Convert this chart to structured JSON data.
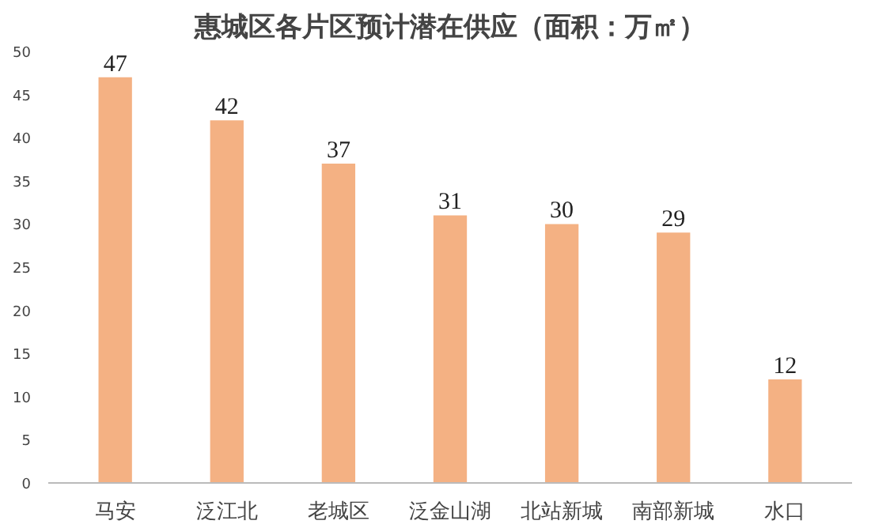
{
  "chart_data": {
    "type": "bar",
    "title": "惠城区各片区预计潜在供应（面积：万㎡）",
    "categories": [
      "马安",
      "泛江北",
      "老城区",
      "泛金山湖",
      "北站新城",
      "南部新城",
      "水口"
    ],
    "values": [
      47,
      42,
      37,
      31,
      30,
      29,
      12
    ],
    "color": "#f4b183",
    "ylim": [
      0,
      50
    ],
    "yticks": [
      0,
      5,
      10,
      15,
      20,
      25,
      30,
      35,
      40,
      45,
      50
    ],
    "grid": false,
    "data_labels": true
  }
}
